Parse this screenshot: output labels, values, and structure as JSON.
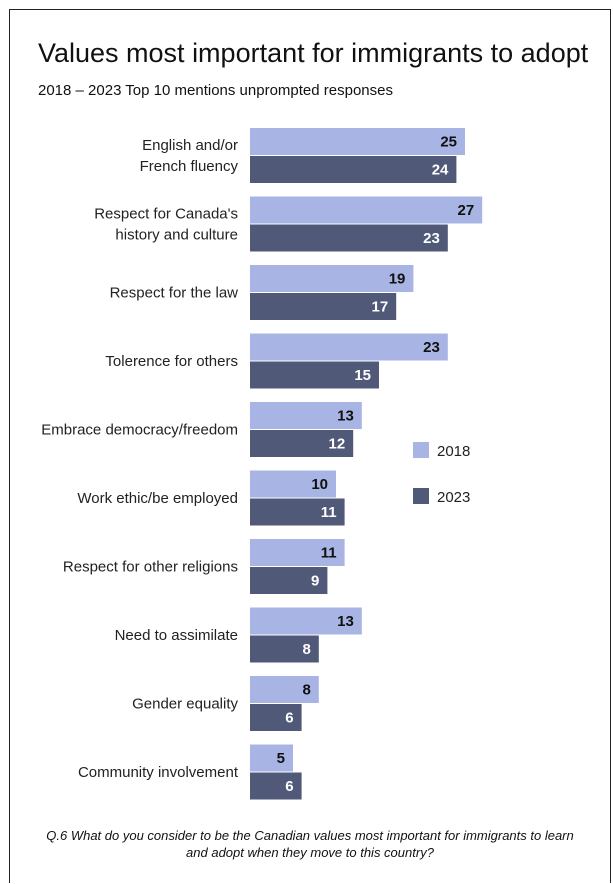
{
  "chart_data": {
    "type": "bar",
    "orientation": "horizontal",
    "title": "Values most important for immigrants to adopt",
    "subtitle": "2018 – 2023   Top 10 mentions  unprompted responses",
    "categories": [
      [
        "English and/or",
        "French fluency"
      ],
      [
        "Respect for Canada's",
        "history and culture"
      ],
      [
        "Respect for the law"
      ],
      [
        "Tolerence for others"
      ],
      [
        "Embrace democracy/freedom"
      ],
      [
        "Work ethic/be employed"
      ],
      [
        "Respect for other religions"
      ],
      [
        "Need to assimilate"
      ],
      [
        "Gender equality"
      ],
      [
        "Community involvement"
      ]
    ],
    "series": [
      {
        "name": "2018",
        "color": "#a8b4e4",
        "label_color": "#111111",
        "values": [
          25,
          27,
          19,
          23,
          13,
          10,
          11,
          13,
          8,
          5
        ]
      },
      {
        "name": "2023",
        "color": "#505a78",
        "label_color": "#ffffff",
        "values": [
          24,
          23,
          17,
          15,
          12,
          11,
          9,
          8,
          6,
          6
        ]
      }
    ],
    "xlim": [
      0,
      27
    ],
    "legend_position": "right",
    "grid": false,
    "footnote": "Q.6 What do you consider to be the Canadian values most important for immigrants to learn and adopt when they move to this country?"
  }
}
